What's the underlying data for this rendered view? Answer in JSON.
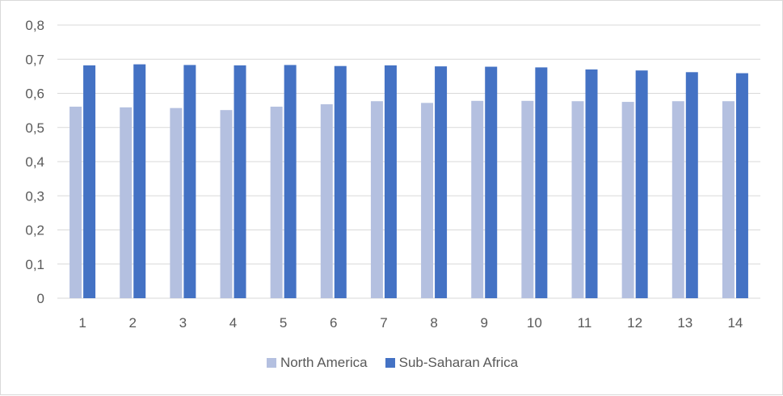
{
  "chart_data": {
    "type": "bar",
    "title": "",
    "xlabel": "",
    "ylabel": "",
    "categories": [
      "1",
      "2",
      "3",
      "4",
      "5",
      "6",
      "7",
      "8",
      "9",
      "10",
      "11",
      "12",
      "13",
      "14"
    ],
    "series": [
      {
        "name": "North America",
        "color": "#b4c0e0",
        "values": [
          0.561,
          0.559,
          0.557,
          0.551,
          0.561,
          0.568,
          0.577,
          0.572,
          0.578,
          0.578,
          0.577,
          0.575,
          0.577,
          0.577
        ]
      },
      {
        "name": "Sub-Saharan Africa",
        "color": "#4472c4",
        "values": [
          0.682,
          0.685,
          0.683,
          0.682,
          0.683,
          0.68,
          0.682,
          0.679,
          0.678,
          0.676,
          0.67,
          0.667,
          0.662,
          0.659
        ]
      }
    ],
    "ylim": [
      0,
      0.8
    ],
    "yticks": [
      "0",
      "0,1",
      "0,2",
      "0,3",
      "0,4",
      "0,5",
      "0,6",
      "0,7",
      "0,8"
    ],
    "grid": true,
    "legend_position": "bottom"
  }
}
